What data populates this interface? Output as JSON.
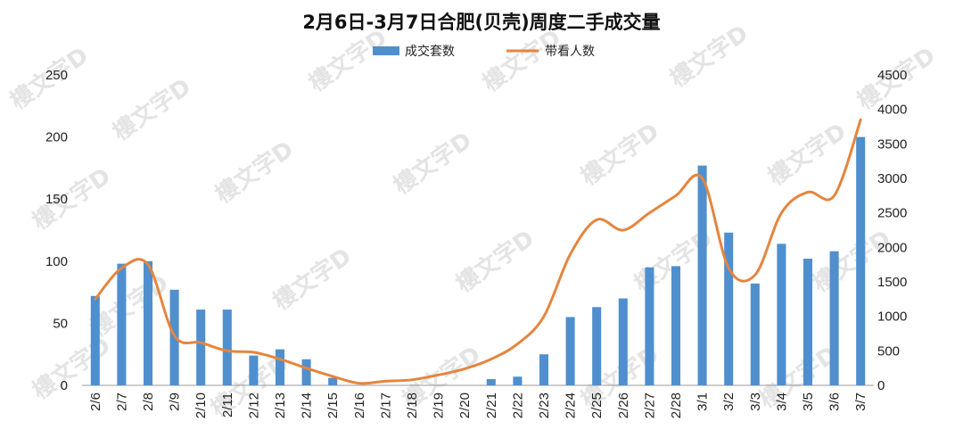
{
  "chart_data": {
    "type": "bar+line",
    "title": "2月6日-3月7日合肥(贝壳)周度二手成交量",
    "categories": [
      "2/6",
      "2/7",
      "2/8",
      "2/9",
      "2/10",
      "2/11",
      "2/12",
      "2/13",
      "2/14",
      "2/15",
      "2/16",
      "2/17",
      "2/18",
      "2/19",
      "2/20",
      "2/21",
      "2/22",
      "2/23",
      "2/24",
      "2/25",
      "2/26",
      "2/27",
      "2/28",
      "3/1",
      "3/2",
      "3/3",
      "3/4",
      "3/5",
      "3/6",
      "3/7"
    ],
    "series": [
      {
        "name": "成交套数",
        "kind": "bar",
        "axis": "left",
        "color": "#4f8fce",
        "values": [
          72,
          98,
          100,
          77,
          61,
          61,
          24,
          29,
          21,
          6,
          0,
          0,
          0,
          0,
          0,
          5,
          7,
          25,
          55,
          63,
          70,
          95,
          96,
          177,
          123,
          82,
          114,
          102,
          108,
          200
        ]
      },
      {
        "name": "带看人数",
        "kind": "line",
        "axis": "right",
        "color": "#e5853f",
        "values": [
          1250,
          1700,
          1750,
          720,
          620,
          500,
          480,
          380,
          250,
          130,
          30,
          60,
          80,
          150,
          240,
          380,
          600,
          1000,
          1900,
          2400,
          2250,
          2500,
          2750,
          3000,
          1700,
          1600,
          2500,
          2800,
          2750,
          3850
        ]
      }
    ],
    "ylim_left": [
      0,
      250
    ],
    "yticks_left": [
      0,
      50,
      100,
      150,
      200,
      250
    ],
    "ylim_right": [
      0,
      4500
    ],
    "yticks_right": [
      0,
      500,
      1000,
      1500,
      2000,
      2500,
      3000,
      3500,
      4000,
      4500
    ],
    "legend_position": "top-center",
    "grid": false
  },
  "watermark": "樓文字D"
}
